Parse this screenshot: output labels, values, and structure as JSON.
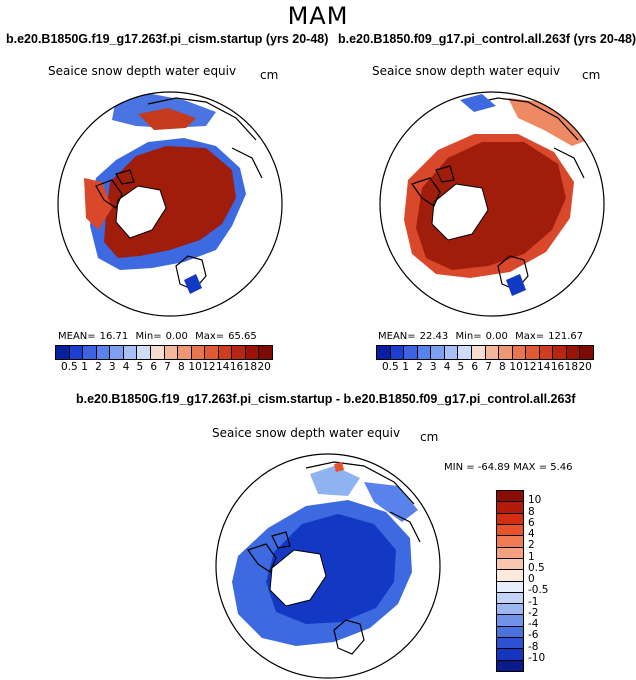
{
  "season": "MAM",
  "units": "cm",
  "field_name": "Seaice snow depth water equiv",
  "colors": {
    "ice_red": "#a01d0c",
    "ice_dark": "#8a0d05",
    "ice_orange": "#d9482a",
    "ice_light": "#ee8a63",
    "blue_dark": "#1238c4",
    "blue_mid": "#3d6ae0",
    "blue_light": "#8fb3f0"
  },
  "panels": [
    {
      "title": "b.e20.B1850G.f19_g17.263f.pi_cism.startup (yrs 20-48)",
      "stats": {
        "mean_label": "MEAN=",
        "mean": "16.71",
        "min_label": "Min=",
        "min": "0.00",
        "max_label": "Max=",
        "max": "65.65"
      }
    },
    {
      "title": "b.e20.B1850.f09_g17.pi_control.all.263f (yrs 20-48)",
      "stats": {
        "mean_label": "MEAN=",
        "mean": "22.43",
        "min_label": "Min=",
        "min": "0.00",
        "max_label": "Max=",
        "max": "121.67"
      }
    }
  ],
  "diff_panel": {
    "title": "b.e20.B1850G.f19_g17.263f.pi_cism.startup - b.e20.B1850.f09_g17.pi_control.all.263f",
    "minmax": "MIN = -64.89 MAX =   5.46"
  },
  "chart_data": [
    {
      "type": "heatmap",
      "title": "Seaice snow depth water equiv",
      "projection": "north-polar stereographic",
      "units": "cm",
      "colorbar": {
        "levels": [
          "0.5",
          "1",
          "2",
          "3",
          "4",
          "5",
          "6",
          "7",
          "8",
          "10",
          "12",
          "14",
          "16",
          "18",
          "20"
        ],
        "colors": [
          "#0a1f9e",
          "#1b3fd0",
          "#3b63e4",
          "#5a82ec",
          "#7ea0f1",
          "#a7c0f5",
          "#cfdcf8",
          "#f7ddd0",
          "#f4b79b",
          "#ef9774",
          "#e9754f",
          "#e05a33",
          "#cf3c1e",
          "#b82612",
          "#9c1408",
          "#7e0a03"
        ]
      },
      "stats": {
        "mean": 16.71,
        "min": 0.0,
        "max": 65.65
      }
    },
    {
      "type": "heatmap",
      "title": "Seaice snow depth water equiv",
      "projection": "north-polar stereographic",
      "units": "cm",
      "colorbar": {
        "levels": [
          "0.5",
          "1",
          "2",
          "3",
          "4",
          "5",
          "6",
          "7",
          "8",
          "10",
          "12",
          "14",
          "16",
          "18",
          "20"
        ],
        "colors": [
          "#0a1f9e",
          "#1b3fd0",
          "#3b63e4",
          "#5a82ec",
          "#7ea0f1",
          "#a7c0f5",
          "#cfdcf8",
          "#f7ddd0",
          "#f4b79b",
          "#ef9774",
          "#e9754f",
          "#e05a33",
          "#cf3c1e",
          "#b82612",
          "#9c1408",
          "#7e0a03"
        ]
      },
      "stats": {
        "mean": 22.43,
        "min": 0.0,
        "max": 121.67
      }
    },
    {
      "type": "heatmap",
      "title": "Seaice snow depth water equiv",
      "projection": "north-polar stereographic",
      "units": "cm",
      "colorbar": {
        "levels": [
          "10",
          "8",
          "6",
          "4",
          "2",
          "1",
          "0.5",
          "0",
          "-0.5",
          "-1",
          "-2",
          "-4",
          "-6",
          "-8",
          "-10"
        ],
        "colors": [
          "#8a0d05",
          "#b41a0a",
          "#d42e12",
          "#e8532b",
          "#f07a52",
          "#f5a07e",
          "#f9c7ad",
          "#fde9dc",
          "#e6eefb",
          "#c3d4f6",
          "#9cb8f0",
          "#6f93e8",
          "#4a72df",
          "#2b52d2",
          "#1535bf",
          "#0a1a8a"
        ]
      },
      "stats": {
        "min": -64.89,
        "max": 5.46
      }
    }
  ]
}
